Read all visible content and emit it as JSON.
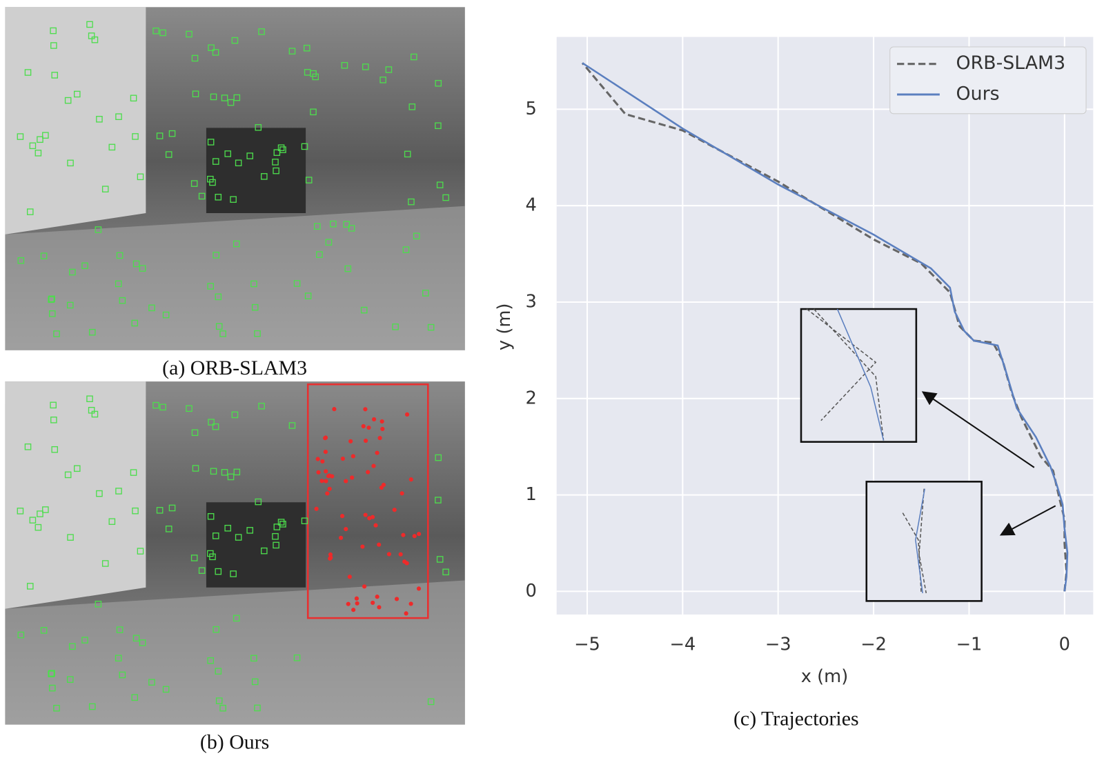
{
  "captions": [
    "(a) ORB-SLAM3",
    "(b) Ours"
  ],
  "chart_data": {
    "type": "line",
    "caption": "(c) Trajectories",
    "xlabel": "x (m)",
    "ylabel": "y (m)",
    "xlim": [
      -5.32,
      0.3
    ],
    "ylim": [
      -0.24,
      5.75
    ],
    "xticks": [
      {
        "value": -5,
        "label": "−5"
      },
      {
        "value": -4,
        "label": "−4"
      },
      {
        "value": -3,
        "label": "−3"
      },
      {
        "value": -2,
        "label": "−2"
      },
      {
        "value": -1,
        "label": "−1"
      },
      0
    ],
    "yticks": [
      0,
      1,
      2,
      3,
      4,
      5
    ],
    "grid": true,
    "legend": "upper right",
    "series": [
      {
        "name": "ORB-SLAM3",
        "color": "#666666",
        "dashed": true,
        "x": [
          0,
          0.02,
          0,
          0,
          -0.05,
          -0.12,
          -0.25,
          -0.45,
          -0.55,
          -0.65,
          -0.75,
          -0.95,
          -1.1,
          -1.2,
          -1.5,
          -2,
          -3,
          -4,
          -4.6,
          -5.05
        ],
        "values": [
          0,
          0.2,
          0.5,
          0.75,
          0.95,
          1.25,
          1.4,
          1.8,
          2.05,
          2.4,
          2.58,
          2.6,
          2.75,
          3.1,
          3.4,
          3.65,
          4.25,
          4.78,
          4.95,
          5.48
        ]
      },
      {
        "name": "Ours",
        "color": "#5b7fbf",
        "dashed": false,
        "x": [
          0,
          0.02,
          0.03,
          0,
          -0.02,
          -0.08,
          -0.15,
          -0.3,
          -0.5,
          -0.62,
          -0.7,
          -0.95,
          -1.05,
          -1.15,
          -1.2,
          -1.4,
          -2,
          -3,
          -4,
          -5.05
        ],
        "values": [
          0,
          0.15,
          0.4,
          0.65,
          0.9,
          1.1,
          1.3,
          1.6,
          1.9,
          2.3,
          2.55,
          2.6,
          2.7,
          2.9,
          3.15,
          3.35,
          3.7,
          4.22,
          4.8,
          5.48
        ]
      }
    ]
  }
}
